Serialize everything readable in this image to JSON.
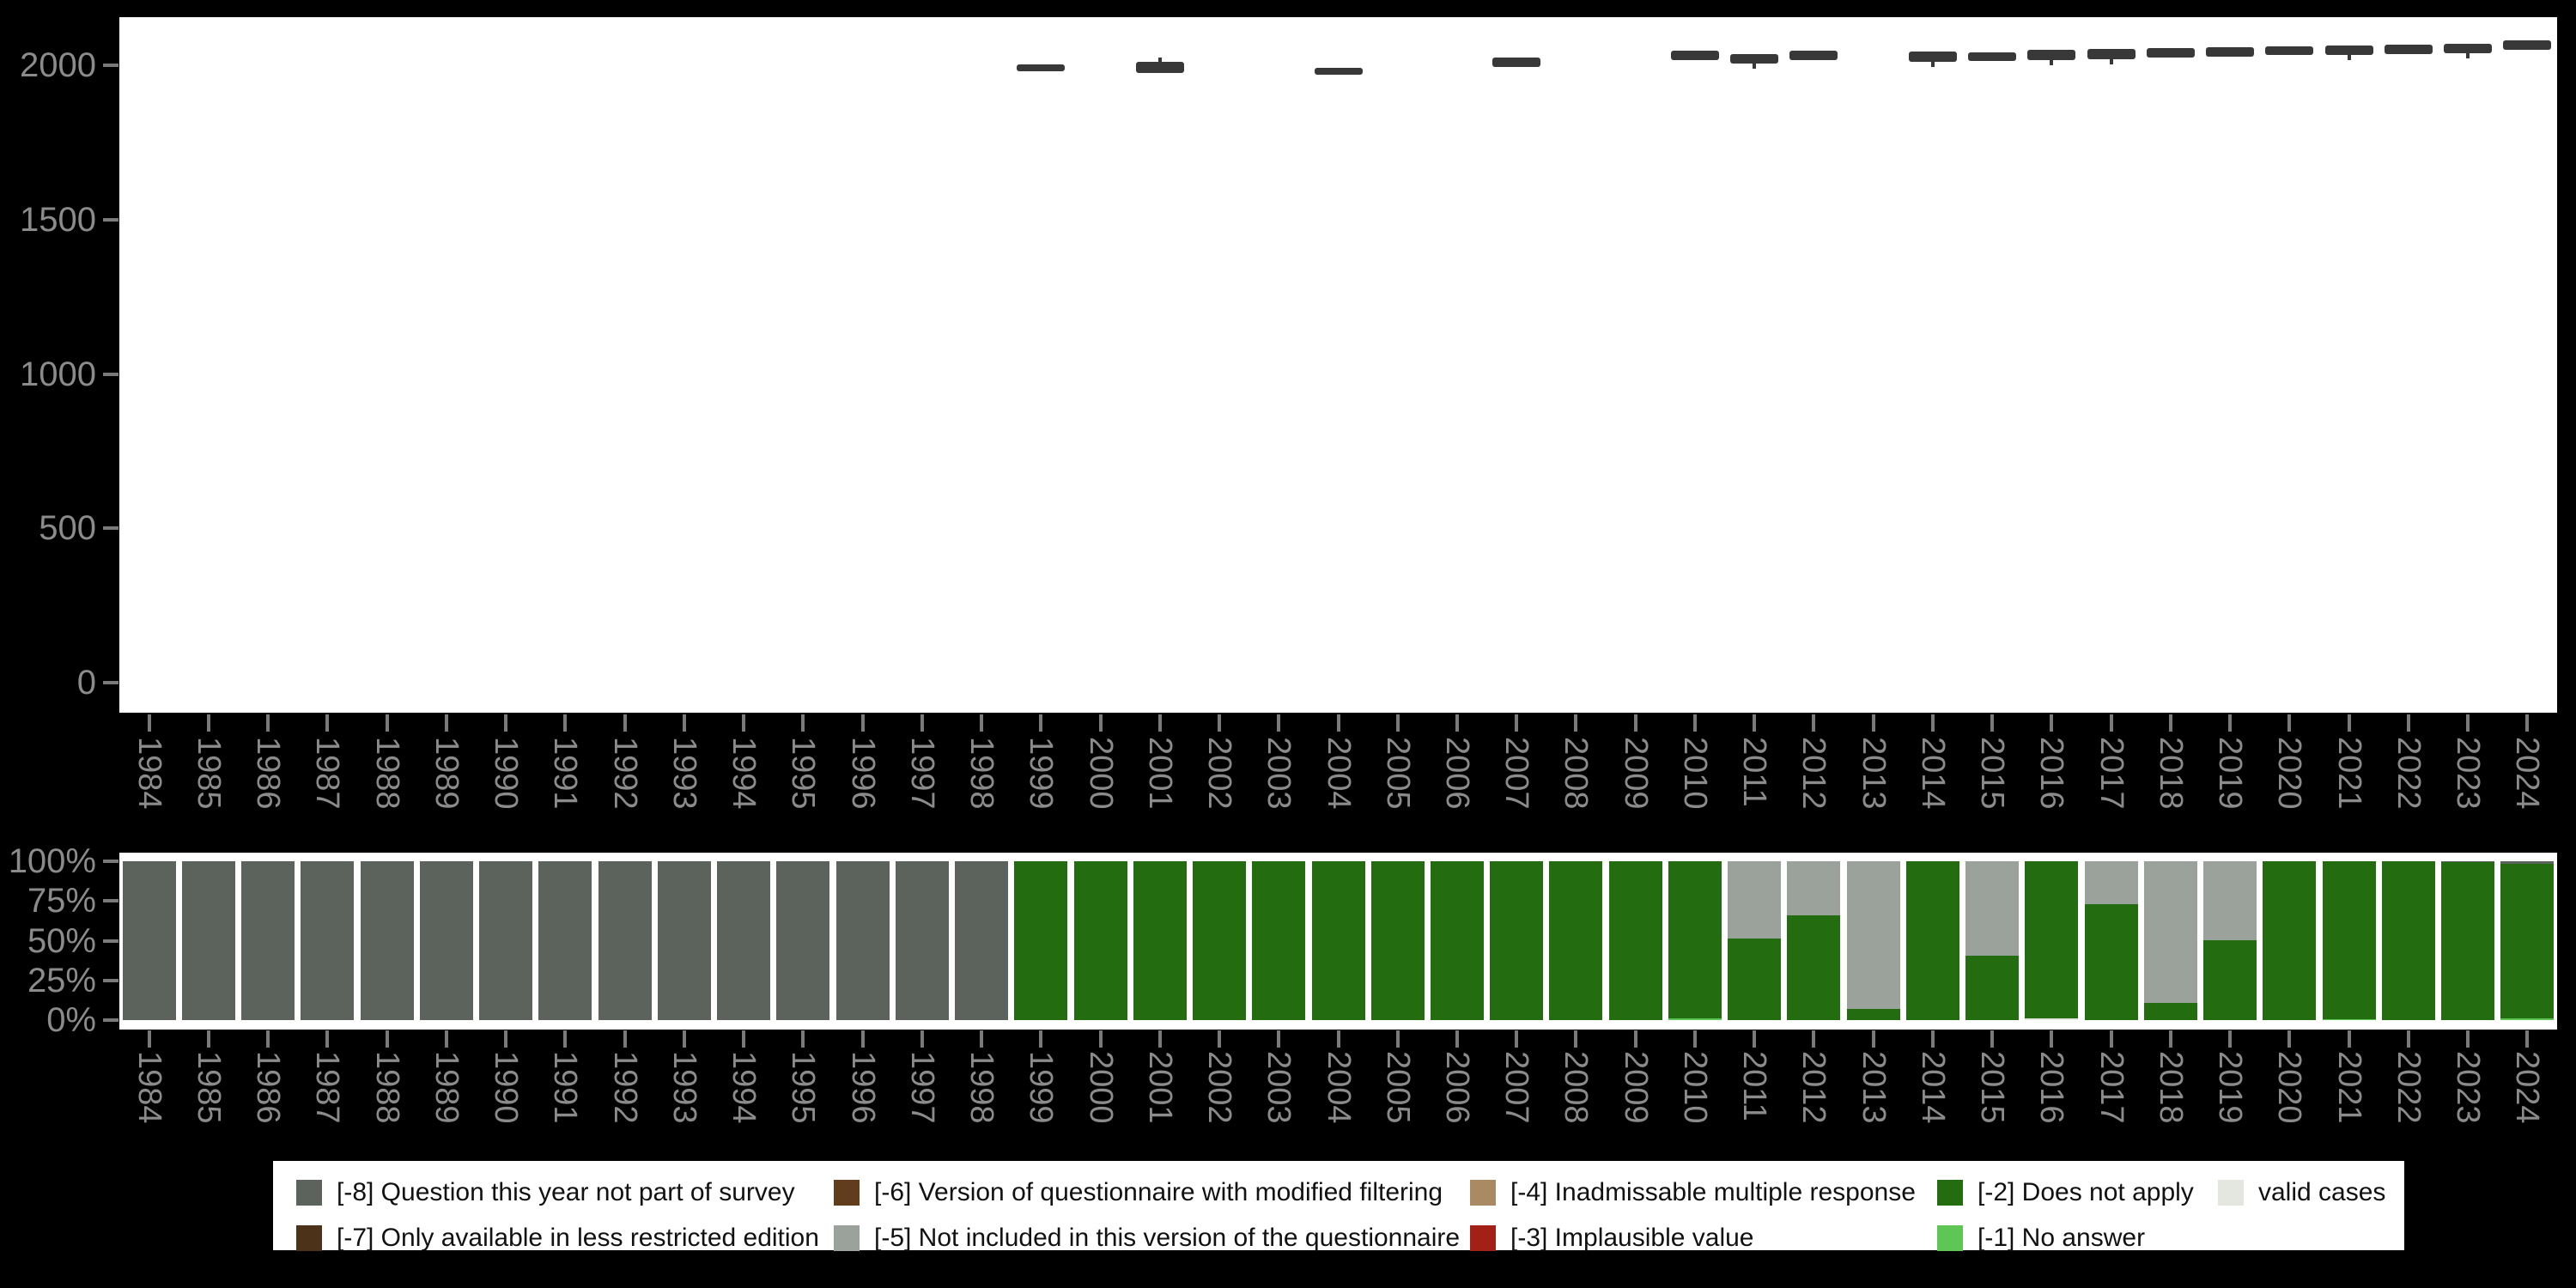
{
  "figure": {
    "background": "#000000",
    "panel_background": "#ffffff",
    "axis_text_color": "#8b8b8b",
    "tick_color": "#7a7a7a",
    "box_color": "#383838"
  },
  "years": [
    "1984",
    "1985",
    "1986",
    "1987",
    "1988",
    "1989",
    "1990",
    "1991",
    "1992",
    "1993",
    "1994",
    "1995",
    "1996",
    "1997",
    "1998",
    "1999",
    "2000",
    "2001",
    "2002",
    "2003",
    "2004",
    "2005",
    "2006",
    "2007",
    "2008",
    "2009",
    "2010",
    "2011",
    "2012",
    "2013",
    "2014",
    "2015",
    "2016",
    "2017",
    "2018",
    "2019",
    "2020",
    "2021",
    "2022",
    "2023",
    "2024"
  ],
  "top_chart": {
    "y_ticks": [
      {
        "value": 2000,
        "label": "2000"
      },
      {
        "value": 1500,
        "label": "1500"
      },
      {
        "value": 1000,
        "label": "1000"
      },
      {
        "value": 500,
        "label": "500"
      },
      {
        "value": 0,
        "label": "0"
      }
    ]
  },
  "bottom_chart": {
    "y_ticks": [
      {
        "pct": 100,
        "label": "100%"
      },
      {
        "pct": 75,
        "label": "75%"
      },
      {
        "pct": 50,
        "label": "50%"
      },
      {
        "pct": 25,
        "label": "25%"
      },
      {
        "pct": 0,
        "label": "0%"
      }
    ]
  },
  "chart_data": [
    {
      "type": "boxplot",
      "title": "",
      "xlabel": "",
      "ylabel": "",
      "x": [
        "1984",
        "1985",
        "1986",
        "1987",
        "1988",
        "1989",
        "1990",
        "1991",
        "1992",
        "1993",
        "1994",
        "1995",
        "1996",
        "1997",
        "1998",
        "1999",
        "2000",
        "2001",
        "2002",
        "2003",
        "2004",
        "2005",
        "2006",
        "2007",
        "2008",
        "2009",
        "2010",
        "2011",
        "2012",
        "2013",
        "2014",
        "2015",
        "2016",
        "2017",
        "2018",
        "2019",
        "2020",
        "2021",
        "2022",
        "2023",
        "2024"
      ],
      "yticks": [
        0,
        500,
        1000,
        1500,
        2000
      ],
      "ylim": [
        -95,
        2155
      ],
      "grid": false,
      "boxes": [
        {
          "year": "1999",
          "q1": 1981,
          "q3": 2003
        },
        {
          "year": "2001",
          "q1": 1975,
          "q3": 2011,
          "whigh": 2025
        },
        {
          "year": "2004",
          "q1": 1969,
          "q3": 1992
        },
        {
          "year": "2007",
          "q1": 1995,
          "q3": 2025
        },
        {
          "year": "2010",
          "q1": 2017,
          "q3": 2047
        },
        {
          "year": "2011",
          "q1": 2005,
          "q3": 2036,
          "wlow": 1989
        },
        {
          "year": "2012",
          "q1": 2017,
          "q3": 2047
        },
        {
          "year": "2014",
          "q1": 2011,
          "q3": 2044,
          "wlow": 1994
        },
        {
          "year": "2015",
          "q1": 2014,
          "q3": 2042
        },
        {
          "year": "2016",
          "q1": 2017,
          "q3": 2050,
          "wlow": 2000
        },
        {
          "year": "2017",
          "q1": 2019,
          "q3": 2053,
          "wlow": 2003
        },
        {
          "year": "2018",
          "q1": 2025,
          "q3": 2055
        },
        {
          "year": "2019",
          "q1": 2028,
          "q3": 2058
        },
        {
          "year": "2020",
          "q1": 2033,
          "q3": 2061
        },
        {
          "year": "2021",
          "q1": 2033,
          "q3": 2064,
          "wlow": 2017
        },
        {
          "year": "2022",
          "q1": 2036,
          "q3": 2067
        },
        {
          "year": "2023",
          "q1": 2039,
          "q3": 2069,
          "wlow": 2022
        },
        {
          "year": "2024",
          "q1": 2050,
          "q3": 2080
        }
      ]
    },
    {
      "type": "bar",
      "stacked": true,
      "unit": "percent",
      "title": "",
      "ylim": [
        0,
        100
      ],
      "yticks": [
        "0%",
        "25%",
        "50%",
        "75%",
        "100%"
      ],
      "categories": [
        "1984",
        "1985",
        "1986",
        "1987",
        "1988",
        "1989",
        "1990",
        "1991",
        "1992",
        "1993",
        "1994",
        "1995",
        "1996",
        "1997",
        "1998",
        "1999",
        "2000",
        "2001",
        "2002",
        "2003",
        "2004",
        "2005",
        "2006",
        "2007",
        "2008",
        "2009",
        "2010",
        "2011",
        "2012",
        "2013",
        "2014",
        "2015",
        "2016",
        "2017",
        "2018",
        "2019",
        "2020",
        "2021",
        "2022",
        "2023",
        "2024"
      ],
      "series": [
        {
          "name": "[-8] Question this year not part of survey",
          "code": "-8",
          "values": [
            100,
            100,
            100,
            100,
            100,
            100,
            100,
            100,
            100,
            100,
            100,
            100,
            100,
            100,
            100,
            0,
            0,
            0,
            0,
            0,
            0,
            0,
            0,
            0,
            0,
            0,
            0,
            0,
            0,
            0,
            0,
            0,
            0,
            0,
            0,
            0,
            0,
            0,
            0,
            0.6,
            1.8
          ]
        },
        {
          "name": "[-5] Not included in this version of the questionnaire",
          "code": "-5",
          "values": [
            0,
            0,
            0,
            0,
            0,
            0,
            0,
            0,
            0,
            0,
            0,
            0,
            0,
            0,
            0,
            0,
            0,
            0,
            0,
            0,
            0,
            0,
            0,
            0,
            0,
            0,
            0,
            48.6,
            34,
            93,
            0,
            59.5,
            0,
            27,
            89,
            49.7,
            0,
            0,
            0,
            0,
            0
          ]
        },
        {
          "name": "[-2] Does not apply",
          "code": "-2",
          "values": [
            0,
            0,
            0,
            0,
            0,
            0,
            0,
            0,
            0,
            0,
            0,
            0,
            0,
            0,
            0,
            100,
            100,
            100,
            100,
            100,
            100,
            100,
            100,
            100,
            100,
            100,
            99.1,
            51.4,
            66,
            7,
            100,
            40.5,
            99,
            73,
            11,
            50.3,
            100,
            99.2,
            100,
            99.4,
            97.2
          ]
        },
        {
          "name": "[-1] No answer",
          "code": "-1",
          "values": [
            0,
            0,
            0,
            0,
            0,
            0,
            0,
            0,
            0,
            0,
            0,
            0,
            0,
            0,
            0,
            0,
            0,
            0,
            0,
            0,
            0,
            0,
            0,
            0,
            0,
            0,
            0.9,
            0,
            0,
            0,
            0,
            0,
            0,
            0,
            0,
            0,
            0,
            0.8,
            0,
            0,
            1.0
          ]
        },
        {
          "name": "valid cases",
          "code": "valid",
          "values": [
            0,
            0,
            0,
            0,
            0,
            0,
            0,
            0,
            0,
            0,
            0,
            0,
            0,
            0,
            0,
            0,
            0,
            0,
            0,
            0,
            0,
            0,
            0,
            0,
            0,
            0,
            0,
            0,
            0,
            0,
            0,
            0,
            1.0,
            0,
            0,
            0,
            0,
            0,
            0,
            0,
            0
          ]
        }
      ]
    }
  ],
  "legend": {
    "items": [
      {
        "code": "-8",
        "label": "[-8] Question this year not part of survey",
        "color": "#5c625c"
      },
      {
        "code": "-7",
        "label": "[-7] Only available in less restricted edition",
        "color": "#4c3219"
      },
      {
        "code": "-6",
        "label": "[-6] Version of questionnaire with modified filtering",
        "color": "#613c1d"
      },
      {
        "code": "-5",
        "label": "[-5] Not included in this version of the questionnaire",
        "color": "#9ba19b"
      },
      {
        "code": "-4",
        "label": "[-4] Inadmissable multiple response",
        "color": "#a98a63"
      },
      {
        "code": "-3",
        "label": "[-3] Implausible value",
        "color": "#a32017"
      },
      {
        "code": "-2",
        "label": "[-2] Does not apply",
        "color": "#246c10"
      },
      {
        "code": "-1",
        "label": "[-1] No answer",
        "color": "#5dc654"
      },
      {
        "code": "valid",
        "label": "valid cases",
        "color": "#e3e7e0"
      }
    ]
  },
  "colors": {
    "-8": "#5c625c",
    "-7": "#4c3219",
    "-6": "#613c1d",
    "-5": "#9ba19b",
    "-4": "#a98a63",
    "-3": "#a32017",
    "-2": "#246c10",
    "-1": "#5dc654",
    "valid": "#e3e7e0"
  }
}
